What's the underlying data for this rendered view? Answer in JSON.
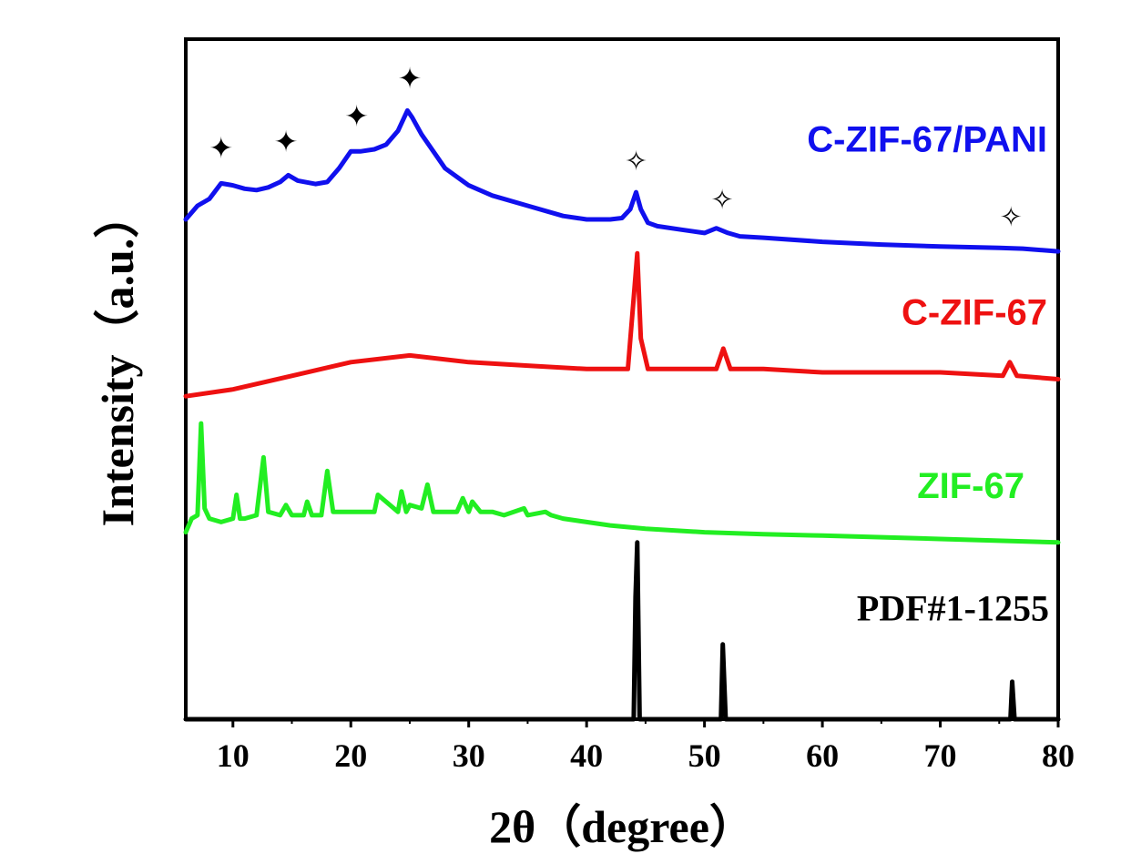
{
  "chart_data": {
    "type": "line",
    "title": "",
    "xlabel": "2θ（degree）",
    "ylabel": "Intensity（a.u.）",
    "xlim": [
      6,
      80
    ],
    "ylim": [
      0,
      100
    ],
    "xticks": [
      10,
      20,
      30,
      40,
      50,
      60,
      70,
      80
    ],
    "xtick_labels": [
      "10",
      "20",
      "30",
      "40",
      "50",
      "60",
      "70",
      "80"
    ],
    "series": [
      {
        "name": "C-ZIF-67/PANI",
        "color": "#1010ee",
        "x": [
          6,
          7,
          8,
          9,
          10,
          11,
          12,
          13,
          14,
          14.7,
          15.5,
          17,
          18,
          19,
          20,
          20.8,
          22,
          23,
          24,
          24.8,
          25.2,
          26,
          27,
          28,
          30,
          32,
          35,
          38,
          40,
          42,
          43,
          43.7,
          44.2,
          44.6,
          45.2,
          46,
          48,
          50,
          51,
          52,
          53,
          55,
          60,
          65,
          70,
          75,
          77,
          80
        ],
        "values": [
          73.5,
          75.5,
          76.5,
          78.8,
          78.5,
          78,
          77.8,
          78.2,
          79,
          80,
          79.2,
          78.7,
          79,
          81,
          83.5,
          83.5,
          83.8,
          84.5,
          86.5,
          89.5,
          88.5,
          86,
          83.5,
          81,
          78.5,
          77,
          75.5,
          74,
          73.5,
          73.5,
          73.7,
          75,
          77.5,
          75,
          73,
          72.5,
          72,
          71.5,
          72.2,
          71.5,
          71,
          70.8,
          70.2,
          69.8,
          69.5,
          69.3,
          69.2,
          68.8
        ]
      },
      {
        "name": "C-ZIF-67",
        "color": "#ee1111",
        "x": [
          6,
          10,
          15,
          20,
          25,
          30,
          35,
          40,
          43.5,
          44.0,
          44.3,
          44.6,
          45.2,
          48,
          51,
          51.6,
          52.2,
          55,
          60,
          70,
          75.3,
          75.9,
          76.5,
          80
        ],
        "values": [
          47.5,
          48.5,
          50.5,
          52.5,
          53.5,
          52.5,
          52,
          51.5,
          51.5,
          62,
          68.5,
          56,
          51.5,
          51.5,
          51.5,
          54.5,
          51.5,
          51.5,
          51,
          51,
          50.5,
          52.5,
          50.5,
          50
        ]
      },
      {
        "name": "ZIF-67",
        "color": "#22ee22",
        "x": [
          6,
          6.5,
          7,
          7.3,
          7.6,
          8,
          9,
          10,
          10.3,
          10.6,
          11,
          12,
          12.6,
          13,
          14,
          14.5,
          15,
          16,
          16.3,
          16.7,
          17.5,
          18,
          18.5,
          19,
          20,
          22,
          22.3,
          24,
          24.3,
          24.7,
          25,
          26,
          26.5,
          27,
          28,
          29,
          29.5,
          30,
          30.3,
          31,
          32,
          33,
          34.7,
          35,
          36.5,
          37,
          38,
          40,
          42,
          45,
          50,
          55,
          60,
          70,
          80
        ],
        "values": [
          27.5,
          29.5,
          30,
          43.5,
          31,
          29.5,
          29,
          29.5,
          33,
          29.5,
          29.5,
          30,
          38.5,
          30.5,
          30,
          31.5,
          30,
          30,
          32,
          30,
          30,
          36.5,
          30.5,
          30.5,
          30.5,
          30.5,
          33,
          30.5,
          33.5,
          30.5,
          31.5,
          31,
          34.5,
          30.5,
          30.5,
          30.5,
          32.5,
          30.5,
          32,
          30.5,
          30.5,
          30,
          31,
          30,
          30.5,
          30,
          29.5,
          29,
          28.5,
          28,
          27.5,
          27.2,
          27,
          26.5,
          26
        ]
      },
      {
        "name": "PDF#1-1255",
        "color": "#000000",
        "x": [
          6,
          44.0,
          44.15,
          44.3,
          44.5,
          51.2,
          51.4,
          51.55,
          51.8,
          75.8,
          75.95,
          76.1,
          76.3,
          80
        ],
        "values": [
          0,
          0,
          18,
          26,
          0,
          0,
          0,
          11,
          0,
          0,
          0,
          5.5,
          0,
          0
        ]
      }
    ],
    "annotations": {
      "filled_star_x": [
        9,
        14.5,
        20.5,
        25
      ],
      "hollow_star_x": [
        44.2,
        51.5,
        76
      ],
      "filled_star_symbol": "✦",
      "hollow_star_symbol": "✧"
    }
  }
}
